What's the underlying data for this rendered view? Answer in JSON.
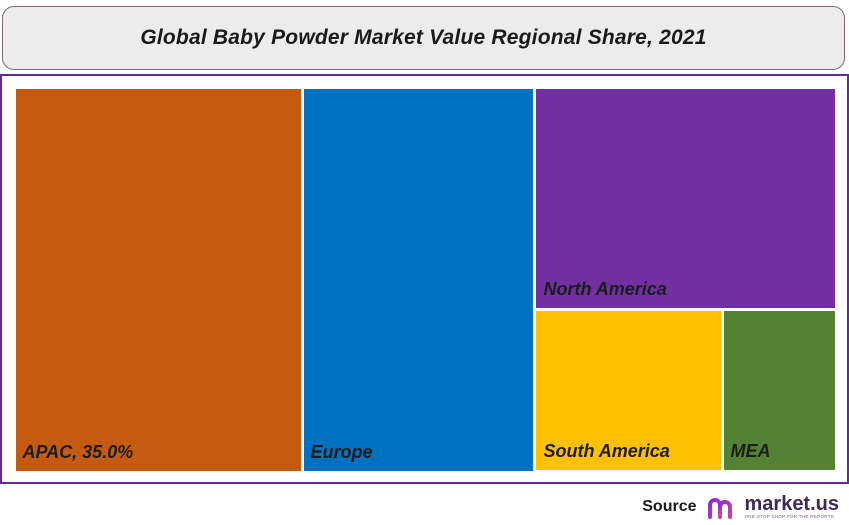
{
  "chart_data": {
    "type": "treemap",
    "title": "Global Baby Powder Market Value Regional Share, 2021",
    "series": [
      {
        "name": "APAC",
        "label": "APAC, 35.0%",
        "value": 35.0,
        "color": "#c55a11"
      },
      {
        "name": "Europe",
        "label": "Europe",
        "value": 28.3,
        "color": "#0070c0"
      },
      {
        "name": "North America",
        "label": "North America",
        "value": 21.2,
        "color": "#7030a0"
      },
      {
        "name": "South America",
        "label": "South America",
        "value": 9.6,
        "color": "#ffc000"
      },
      {
        "name": "MEA",
        "label": "MEA",
        "value": 5.9,
        "color": "#548235"
      }
    ]
  },
  "footer": {
    "source_label": "Source",
    "logo_name": "market.us",
    "logo_tagline": "ONE STOP SHOP FOR THE REPORTS",
    "logo_colors": [
      "#8a2be2",
      "#c9459a"
    ]
  }
}
